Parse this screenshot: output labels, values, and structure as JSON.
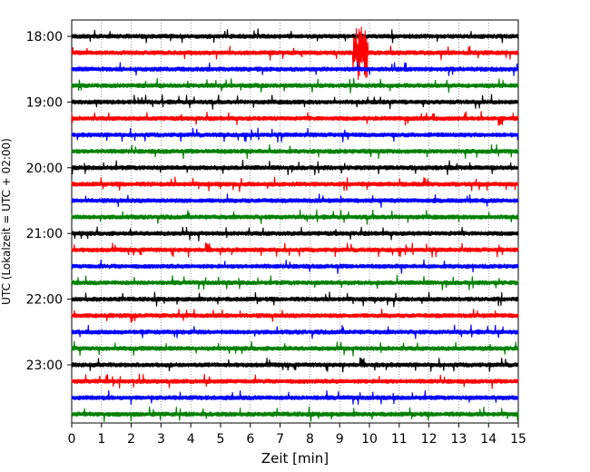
{
  "chart_data": {
    "type": "line",
    "title": "",
    "xlabel": "Zeit  [min]",
    "ylabel": "UTC (Lokalzeit = UTC + 02:00)",
    "xlim": [
      0,
      15
    ],
    "x_ticks": [
      "0",
      "1",
      "2",
      "3",
      "4",
      "5",
      "6",
      "7",
      "8",
      "9",
      "10",
      "11",
      "12",
      "13",
      "14",
      "15"
    ],
    "y_time_range": [
      "18:00",
      "23:45"
    ],
    "y_tick_labels": [
      "18:00",
      "19:00",
      "20:00",
      "21:00",
      "22:00",
      "23:00"
    ],
    "trace_interval_min": 15,
    "trace_count": 24,
    "trace_colors": [
      "#000000",
      "#ff0000",
      "#0000ff",
      "#008000"
    ],
    "grid": "vertical dotted at every minute",
    "notable_events": [
      {
        "trace_start": "18:15",
        "x_min": [
          9.45,
          9.95
        ],
        "description": "large amplitude spike"
      }
    ]
  }
}
